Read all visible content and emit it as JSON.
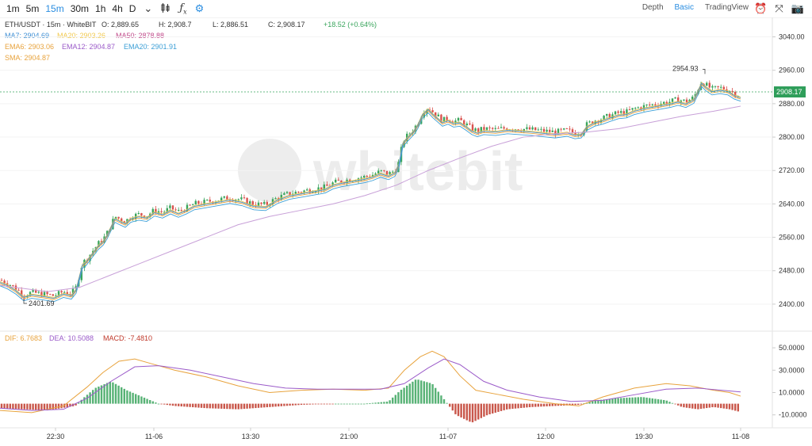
{
  "toolbar": {
    "timeframes": [
      "1m",
      "5m",
      "15m",
      "30m",
      "1h",
      "4h",
      "D"
    ],
    "active_timeframe": "15m",
    "views": [
      "Depth",
      "Basic",
      "TradingView"
    ],
    "active_view": "Basic",
    "icons": [
      "chevron-down-icon",
      "candles-icon",
      "function-icon",
      "settings-icon",
      "alarm-icon",
      "fullscreen-icon",
      "camera-icon"
    ]
  },
  "chart_data": {
    "type": "candlestick",
    "symbol": "ETH/USDT · 15m · WhiteBIT",
    "ohlc": {
      "o": "O: 2,889.65",
      "h": "H: 2,908.7",
      "l": "L: 2,886.51",
      "c": "C: 2,908.17",
      "chg": "+18.52 (+0.64%)"
    },
    "ma_legend": [
      {
        "text": "MA7: 2904.69",
        "color": "#3f8fd4"
      },
      {
        "text": "MA20: 2903.26",
        "color": "#f2c94c"
      },
      {
        "text": "MA50: 2878.88",
        "color": "#c14a8a"
      },
      {
        "text": "EMA6: 2903.06",
        "color": "#e8a33d"
      },
      {
        "text": "EMA12: 2904.87",
        "color": "#9b5bc9"
      },
      {
        "text": "EMA20: 2901.91",
        "color": "#3c9fd6"
      },
      {
        "text": "SMA: 2904.87",
        "color": "#e8a33d"
      }
    ],
    "price_axis": {
      "min": 2360,
      "max": 3060,
      "ticks": [
        "3040.00",
        "2960.00",
        "2880.00",
        "2800.00",
        "2720.00",
        "2640.00",
        "2560.00",
        "2480.00",
        "2400.00"
      ]
    },
    "current_price": "2908.17",
    "high_marker": {
      "label": "2954.93",
      "value": 2954.93
    },
    "low_marker": {
      "label": "2401.69",
      "value": 2401.69
    },
    "price_path": [
      [
        0,
        2458
      ],
      [
        10,
        2450
      ],
      [
        20,
        2438
      ],
      [
        30,
        2422
      ],
      [
        40,
        2428
      ],
      [
        55,
        2424
      ],
      [
        68,
        2420
      ],
      [
        80,
        2430
      ],
      [
        90,
        2426
      ],
      [
        96,
        2440
      ],
      [
        100,
        2470
      ],
      [
        104,
        2500
      ],
      [
        108,
        2505
      ],
      [
        112,
        2515
      ],
      [
        118,
        2530
      ],
      [
        124,
        2545
      ],
      [
        130,
        2555
      ],
      [
        135,
        2570
      ],
      [
        140,
        2590
      ],
      [
        145,
        2610
      ],
      [
        150,
        2605
      ],
      [
        158,
        2598
      ],
      [
        165,
        2610
      ],
      [
        175,
        2615
      ],
      [
        185,
        2612
      ],
      [
        195,
        2625
      ],
      [
        205,
        2620
      ],
      [
        215,
        2630
      ],
      [
        225,
        2622
      ],
      [
        235,
        2630
      ],
      [
        245,
        2640
      ],
      [
        260,
        2645
      ],
      [
        275,
        2650
      ],
      [
        290,
        2655
      ],
      [
        305,
        2650
      ],
      [
        320,
        2640
      ],
      [
        335,
        2638
      ],
      [
        350,
        2655
      ],
      [
        365,
        2665
      ],
      [
        380,
        2670
      ],
      [
        395,
        2675
      ],
      [
        410,
        2680
      ],
      [
        420,
        2690
      ],
      [
        430,
        2695
      ],
      [
        445,
        2700
      ],
      [
        460,
        2705
      ],
      [
        470,
        2710
      ],
      [
        480,
        2718
      ],
      [
        490,
        2712
      ],
      [
        498,
        2720
      ],
      [
        503,
        2740
      ],
      [
        508,
        2790
      ],
      [
        512,
        2800
      ],
      [
        517,
        2810
      ],
      [
        522,
        2820
      ],
      [
        527,
        2835
      ],
      [
        533,
        2860
      ],
      [
        540,
        2872
      ],
      [
        546,
        2860
      ],
      [
        552,
        2850
      ],
      [
        558,
        2840
      ],
      [
        565,
        2845
      ],
      [
        572,
        2838
      ],
      [
        580,
        2840
      ],
      [
        588,
        2830
      ],
      [
        595,
        2820
      ],
      [
        602,
        2815
      ],
      [
        610,
        2820
      ],
      [
        625,
        2818
      ],
      [
        640,
        2822
      ],
      [
        655,
        2820
      ],
      [
        670,
        2818
      ],
      [
        685,
        2815
      ],
      [
        700,
        2812
      ],
      [
        715,
        2816
      ],
      [
        725,
        2810
      ],
      [
        733,
        2812
      ],
      [
        740,
        2830
      ],
      [
        750,
        2840
      ],
      [
        760,
        2845
      ],
      [
        770,
        2852
      ],
      [
        780,
        2858
      ],
      [
        790,
        2860
      ],
      [
        800,
        2868
      ],
      [
        815,
        2875
      ],
      [
        830,
        2880
      ],
      [
        845,
        2885
      ],
      [
        855,
        2890
      ],
      [
        865,
        2885
      ],
      [
        875,
        2895
      ],
      [
        885,
        2935
      ],
      [
        890,
        2925
      ],
      [
        898,
        2915
      ],
      [
        908,
        2918
      ],
      [
        918,
        2915
      ],
      [
        926,
        2905
      ],
      [
        934,
        2900
      ]
    ],
    "ma_slow_path": [
      [
        0,
        2445
      ],
      [
        60,
        2430
      ],
      [
        100,
        2440
      ],
      [
        140,
        2470
      ],
      [
        180,
        2500
      ],
      [
        220,
        2530
      ],
      [
        260,
        2560
      ],
      [
        300,
        2590
      ],
      [
        340,
        2610
      ],
      [
        380,
        2625
      ],
      [
        420,
        2640
      ],
      [
        460,
        2660
      ],
      [
        500,
        2685
      ],
      [
        540,
        2720
      ],
      [
        580,
        2750
      ],
      [
        620,
        2778
      ],
      [
        660,
        2800
      ],
      [
        700,
        2808
      ],
      [
        740,
        2812
      ],
      [
        780,
        2820
      ],
      [
        820,
        2835
      ],
      [
        860,
        2850
      ],
      [
        900,
        2862
      ],
      [
        934,
        2874
      ]
    ],
    "time_labels": [
      {
        "x": 70,
        "label": "22:30"
      },
      {
        "x": 194,
        "label": "11-06"
      },
      {
        "x": 316,
        "label": "13:30"
      },
      {
        "x": 440,
        "label": "21:00"
      },
      {
        "x": 565,
        "label": "11-07"
      },
      {
        "x": 688,
        "label": "12:00"
      },
      {
        "x": 812,
        "label": "19:30"
      },
      {
        "x": 934,
        "label": "11-08"
      }
    ],
    "macd": {
      "legend": [
        {
          "text": "DIF: 6.7683",
          "color": "#e8a33d"
        },
        {
          "text": "DEA: 10.5088",
          "color": "#9b5bc9"
        },
        {
          "text": "MACD: -7.4810",
          "color": "#c0392b"
        }
      ],
      "axis": {
        "min": -18,
        "max": 55,
        "ticks": [
          "50.0000",
          "30.0000",
          "10.0000",
          "-10.0000"
        ]
      },
      "dif_path": [
        [
          0,
          -6
        ],
        [
          40,
          -8
        ],
        [
          80,
          -2
        ],
        [
          110,
          15
        ],
        [
          130,
          28
        ],
        [
          150,
          38
        ],
        [
          170,
          40
        ],
        [
          190,
          36
        ],
        [
          220,
          30
        ],
        [
          260,
          24
        ],
        [
          300,
          16
        ],
        [
          340,
          10
        ],
        [
          380,
          12
        ],
        [
          420,
          13
        ],
        [
          460,
          12
        ],
        [
          490,
          14
        ],
        [
          510,
          30
        ],
        [
          530,
          42
        ],
        [
          545,
          47
        ],
        [
          560,
          42
        ],
        [
          580,
          25
        ],
        [
          600,
          12
        ],
        [
          630,
          8
        ],
        [
          660,
          4
        ],
        [
          700,
          0
        ],
        [
          730,
          -2
        ],
        [
          760,
          6
        ],
        [
          800,
          14
        ],
        [
          840,
          18
        ],
        [
          870,
          16
        ],
        [
          900,
          12
        ],
        [
          920,
          10
        ],
        [
          934,
          6.77
        ]
      ],
      "dea_path": [
        [
          0,
          -4
        ],
        [
          40,
          -6
        ],
        [
          80,
          -5
        ],
        [
          110,
          5
        ],
        [
          140,
          20
        ],
        [
          170,
          33
        ],
        [
          200,
          34
        ],
        [
          240,
          30
        ],
        [
          280,
          24
        ],
        [
          320,
          18
        ],
        [
          360,
          14
        ],
        [
          400,
          13
        ],
        [
          440,
          13
        ],
        [
          480,
          13
        ],
        [
          510,
          18
        ],
        [
          540,
          32
        ],
        [
          560,
          40
        ],
        [
          580,
          35
        ],
        [
          610,
          20
        ],
        [
          640,
          12
        ],
        [
          680,
          6
        ],
        [
          720,
          2
        ],
        [
          760,
          3
        ],
        [
          800,
          8
        ],
        [
          840,
          13
        ],
        [
          880,
          14
        ],
        [
          910,
          12
        ],
        [
          934,
          10.51
        ]
      ],
      "hist": [
        [
          0,
          -4
        ],
        [
          60,
          -6
        ],
        [
          95,
          -2
        ],
        [
          105,
          5
        ],
        [
          120,
          14
        ],
        [
          140,
          20
        ],
        [
          160,
          12
        ],
        [
          180,
          6
        ],
        [
          200,
          0
        ],
        [
          220,
          -2
        ],
        [
          260,
          -4
        ],
        [
          300,
          -5
        ],
        [
          340,
          -3
        ],
        [
          380,
          -1
        ],
        [
          420,
          0
        ],
        [
          460,
          0
        ],
        [
          490,
          2
        ],
        [
          505,
          12
        ],
        [
          525,
          22
        ],
        [
          545,
          18
        ],
        [
          560,
          4
        ],
        [
          575,
          -10
        ],
        [
          595,
          -17
        ],
        [
          615,
          -10
        ],
        [
          640,
          -5
        ],
        [
          670,
          -3
        ],
        [
          700,
          -2
        ],
        [
          730,
          -1
        ],
        [
          750,
          3
        ],
        [
          780,
          5
        ],
        [
          810,
          6
        ],
        [
          840,
          3
        ],
        [
          860,
          -3
        ],
        [
          880,
          -5
        ],
        [
          900,
          -3
        ],
        [
          920,
          -5
        ],
        [
          934,
          -7.48
        ]
      ]
    }
  }
}
